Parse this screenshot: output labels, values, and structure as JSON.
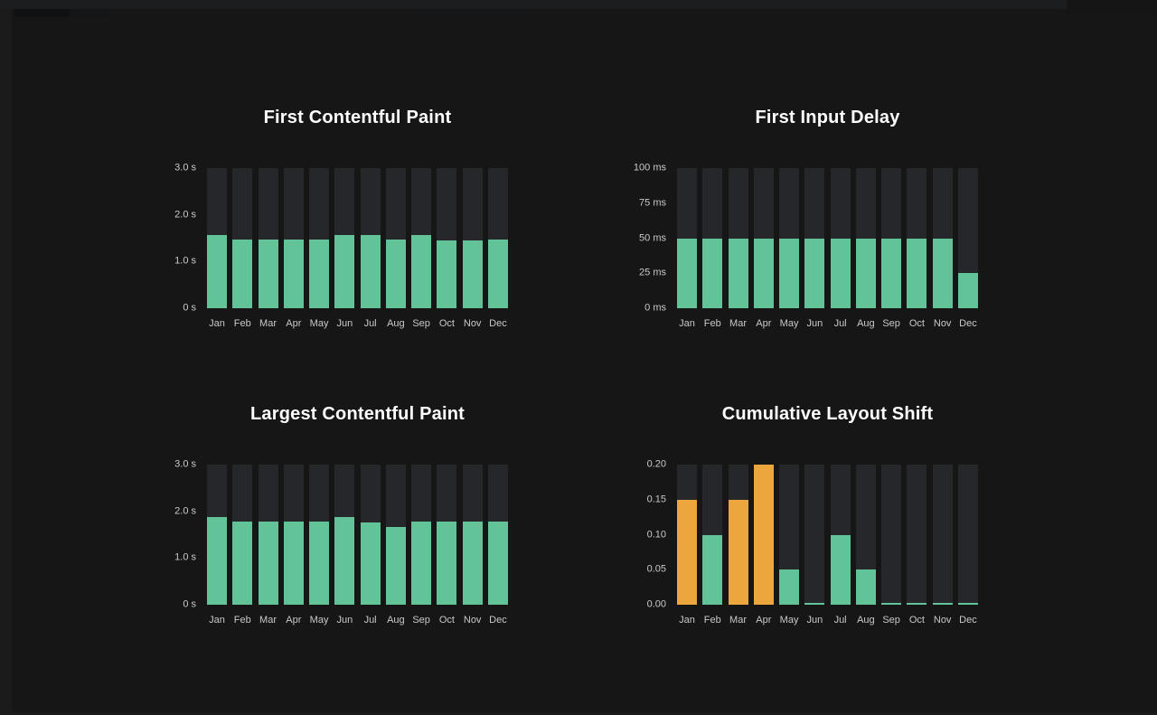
{
  "page": {
    "background": "#161617",
    "frame_color": "#1b1b1c",
    "title_color": "#ffffff",
    "axis_label_color": "#c9c9c9"
  },
  "colors": {
    "good_green": "#63C398",
    "warning_orange": "#EDA63E",
    "bar_track": "#26272a"
  },
  "chart_data": [
    {
      "type": "bar",
      "title": "First Contentful Paint",
      "xlabel": "",
      "ylabel": "",
      "unit": "s",
      "ylim": [
        0,
        3
      ],
      "grid": false,
      "legend": false,
      "categories": [
        "Jan",
        "Feb",
        "Mar",
        "Apr",
        "May",
        "Jun",
        "Jul",
        "Aug",
        "Sep",
        "Oct",
        "Nov",
        "Dec"
      ],
      "values": [
        1.56,
        1.47,
        1.47,
        1.47,
        1.47,
        1.56,
        1.56,
        1.47,
        1.56,
        1.46,
        1.46,
        1.47
      ],
      "yticks": [
        {
          "value": 0,
          "label": "0 s"
        },
        {
          "value": 1,
          "label": "1.0 s"
        },
        {
          "value": 2,
          "label": "2.0 s"
        },
        {
          "value": 3,
          "label": "3.0 s"
        }
      ],
      "bar_color": "#63C398",
      "track_color": "#26272a"
    },
    {
      "type": "bar",
      "title": "First Input Delay",
      "xlabel": "",
      "ylabel": "",
      "unit": "ms",
      "ylim": [
        0,
        100
      ],
      "grid": false,
      "legend": false,
      "categories": [
        "Jan",
        "Feb",
        "Mar",
        "Apr",
        "May",
        "Jun",
        "Jul",
        "Aug",
        "Sep",
        "Oct",
        "Nov",
        "Dec"
      ],
      "values": [
        50,
        50,
        50,
        50,
        50,
        50,
        50,
        50,
        50,
        50,
        50,
        25
      ],
      "yticks": [
        {
          "value": 0,
          "label": "0 ms"
        },
        {
          "value": 25,
          "label": "25 ms"
        },
        {
          "value": 50,
          "label": "50 ms"
        },
        {
          "value": 75,
          "label": "75 ms"
        },
        {
          "value": 100,
          "label": "100 ms"
        }
      ],
      "bar_color": "#63C398",
      "track_color": "#26272a"
    },
    {
      "type": "bar",
      "title": "Largest Contentful Paint",
      "xlabel": "",
      "ylabel": "",
      "unit": "s",
      "ylim": [
        0,
        3
      ],
      "grid": false,
      "legend": false,
      "categories": [
        "Jan",
        "Feb",
        "Mar",
        "Apr",
        "May",
        "Jun",
        "Jul",
        "Aug",
        "Sep",
        "Oct",
        "Nov",
        "Dec"
      ],
      "values": [
        1.87,
        1.78,
        1.78,
        1.78,
        1.78,
        1.87,
        1.77,
        1.66,
        1.78,
        1.78,
        1.78,
        1.78
      ],
      "yticks": [
        {
          "value": 0,
          "label": "0 s"
        },
        {
          "value": 1,
          "label": "1.0 s"
        },
        {
          "value": 2,
          "label": "2.0 s"
        },
        {
          "value": 3,
          "label": "3.0 s"
        }
      ],
      "bar_color": "#63C398",
      "track_color": "#26272a"
    },
    {
      "type": "bar",
      "title": "Cumulative Layout Shift",
      "xlabel": "",
      "ylabel": "",
      "unit": "",
      "ylim": [
        0,
        0.2
      ],
      "grid": false,
      "legend": false,
      "categories": [
        "Jan",
        "Feb",
        "Mar",
        "Apr",
        "May",
        "Jun",
        "Jul",
        "Aug",
        "Sep",
        "Oct",
        "Nov",
        "Dec"
      ],
      "values": [
        0.15,
        0.1,
        0.15,
        0.2,
        0.05,
        0.002,
        0.1,
        0.05,
        0.002,
        0.002,
        0.002,
        0.002
      ],
      "yticks": [
        {
          "value": 0,
          "label": "0.00"
        },
        {
          "value": 0.05,
          "label": "0.05"
        },
        {
          "value": 0.1,
          "label": "0.10"
        },
        {
          "value": 0.15,
          "label": "0.15"
        },
        {
          "value": 0.2,
          "label": "0.20"
        }
      ],
      "bar_color": "#63C398",
      "bar_colors": [
        "#EDA63E",
        "#63C398",
        "#EDA63E",
        "#EDA63E",
        "#63C398",
        "#63C398",
        "#63C398",
        "#63C398",
        "#63C398",
        "#63C398",
        "#63C398",
        "#63C398"
      ],
      "track_color": "#26272a"
    }
  ]
}
